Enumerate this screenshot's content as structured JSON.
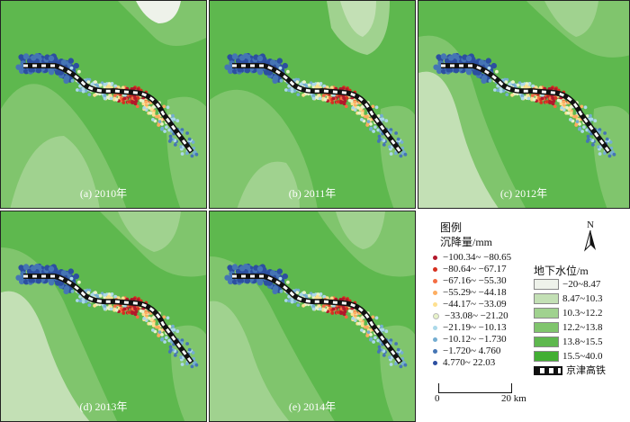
{
  "panels": [
    {
      "label": "(a) 2010年"
    },
    {
      "label": "(b) 2011年"
    },
    {
      "label": "(c) 2012年"
    },
    {
      "label": "(d) 2013年"
    },
    {
      "label": "(e) 2014年"
    }
  ],
  "legend": {
    "title": "图例",
    "subsidence_title": "沉降量/mm",
    "subsidence_classes": [
      {
        "label": "−100.34~ −80.65",
        "color": "#b2182b"
      },
      {
        "label": "−80.64~ −67.17",
        "color": "#d6301f"
      },
      {
        "label": "−67.16~ −55.30",
        "color": "#f46d43"
      },
      {
        "label": "−55.29~ −44.18",
        "color": "#fdae61"
      },
      {
        "label": "−44.17~ −33.09",
        "color": "#fee090"
      },
      {
        "label": "−33.08~ −21.20",
        "color": "#e8f3c9"
      },
      {
        "label": "−21.19~ −10.13",
        "color": "#abd9e9"
      },
      {
        "label": "−10.12~ −1.730",
        "color": "#74add1"
      },
      {
        "label": "−1.720~ 4.760",
        "color": "#4575b4"
      },
      {
        "label": "4.770~ 22.03",
        "color": "#2c4fa0"
      }
    ],
    "groundwater_title": "地下水位/m",
    "groundwater_classes": [
      {
        "label": "−20~8.47",
        "color": "#eef2ea"
      },
      {
        "label": "8.47~10.3",
        "color": "#c3e0b5"
      },
      {
        "label": "10.3~12.2",
        "color": "#a0d28f"
      },
      {
        "label": "12.2~13.8",
        "color": "#80c56d"
      },
      {
        "label": "13.8~15.5",
        "color": "#5eb84e"
      },
      {
        "label": "15.5~40.0",
        "color": "#42ae33"
      }
    ],
    "railway_label": "京津高铁",
    "north_label": "N",
    "scale_start": "0",
    "scale_end": "20 km"
  }
}
